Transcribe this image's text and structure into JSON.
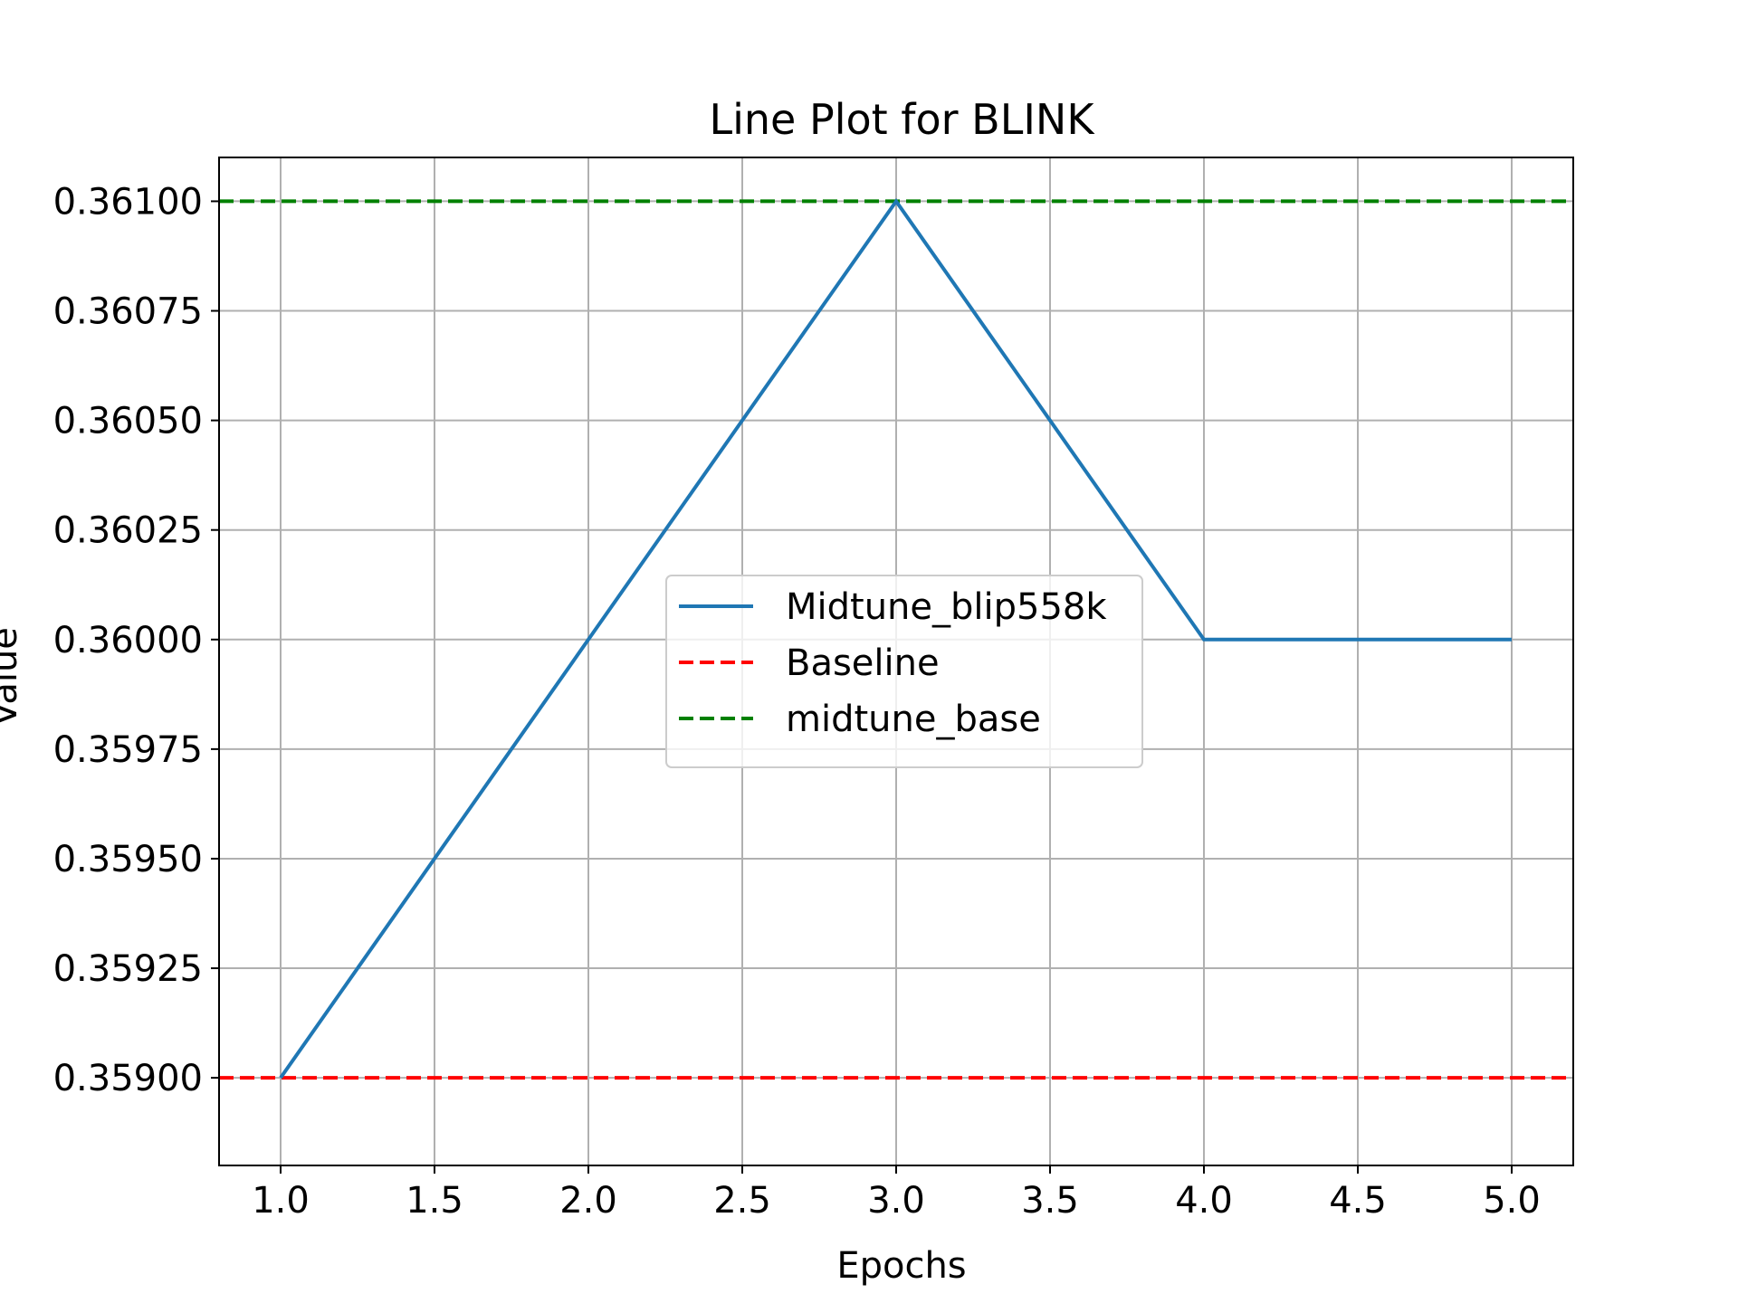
{
  "chart_data": {
    "type": "line",
    "title": "Line Plot for BLINK",
    "xlabel": "Epochs",
    "ylabel": "Value",
    "x": [
      1,
      2,
      3,
      4,
      5
    ],
    "xlim": [
      0.8,
      5.2
    ],
    "ylim": [
      0.3588,
      0.3611
    ],
    "xticks": [
      "1.0",
      "1.5",
      "2.0",
      "2.5",
      "3.0",
      "3.5",
      "4.0",
      "4.5",
      "5.0"
    ],
    "yticks": [
      "0.35900",
      "0.35925",
      "0.35950",
      "0.35975",
      "0.36000",
      "0.36025",
      "0.36050",
      "0.36075",
      "0.36100"
    ],
    "grid": true,
    "legend_position": "center",
    "series": [
      {
        "name": "Midtune_blip558k",
        "style": "solid",
        "color": "#1f77b4",
        "values": [
          0.359,
          0.36,
          0.361,
          0.36,
          0.36
        ]
      }
    ],
    "reference_lines": [
      {
        "name": "Baseline",
        "style": "dashed",
        "color": "#ff0000",
        "y": 0.359
      },
      {
        "name": "midtune_base",
        "style": "dashed",
        "color": "#008000",
        "y": 0.361
      }
    ]
  }
}
